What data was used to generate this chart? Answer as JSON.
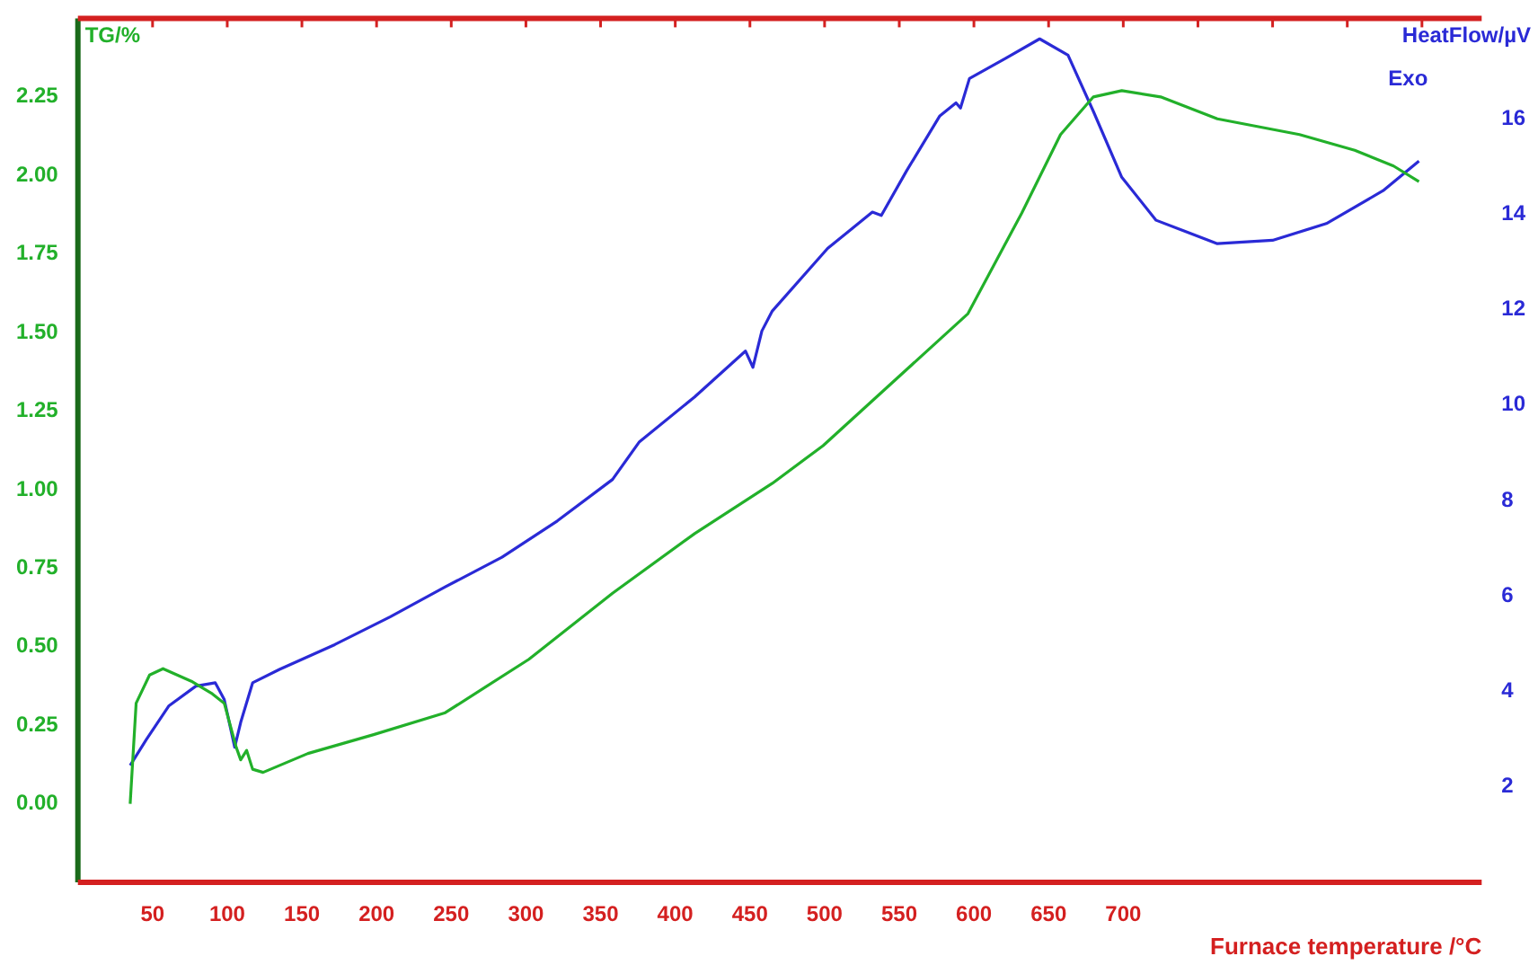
{
  "chart_data": {
    "type": "line",
    "xlabel": "Furnace temperature /°C",
    "ylabel": "TG/%",
    "y2label": "HeatFlow/µV",
    "annotations": [
      "Exo"
    ],
    "xlim": [
      0,
      940
    ],
    "xticks": [
      50,
      100,
      150,
      200,
      250,
      300,
      350,
      400,
      450,
      500,
      550,
      600,
      650,
      700,
      {
        "value": 750,
        "label": null
      },
      {
        "value": 800,
        "label": null
      },
      {
        "value": 850,
        "label": null
      },
      {
        "value": 900,
        "label": null
      }
    ],
    "ylim": [
      -0.25,
      2.5
    ],
    "yticks": [
      {
        "value": 0,
        "label": "0.00"
      },
      0.25,
      {
        "value": 0.5,
        "label": "0.50"
      },
      0.75,
      {
        "value": 1,
        "label": "1.00"
      },
      1.25,
      {
        "value": 1.5,
        "label": "1.50"
      },
      1.75,
      {
        "value": 2,
        "label": "2.00"
      },
      2.25
    ],
    "y2lim": [
      0,
      18.1
    ],
    "y2ticks": [
      2,
      4,
      6,
      8,
      10,
      12,
      14,
      16
    ],
    "grid": false,
    "marker": "none",
    "line_style": "solid",
    "series": [
      {
        "color": "#22b02a",
        "x": [
          35,
          39,
          48,
          57,
          76,
          90,
          98,
          106,
          109,
          113,
          117,
          124,
          154,
          198,
          246,
          302,
          358,
          413,
          465,
          499,
          596,
          632,
          658,
          680,
          699,
          725,
          763,
          818,
          855,
          881,
          898
        ],
        "values": [
          0.0,
          0.32,
          0.41,
          0.43,
          0.39,
          0.35,
          0.32,
          0.18,
          0.14,
          0.17,
          0.11,
          0.1,
          0.16,
          0.22,
          0.29,
          0.46,
          0.67,
          0.86,
          1.02,
          1.14,
          1.56,
          1.88,
          2.13,
          2.25,
          2.27,
          2.25,
          2.18,
          2.13,
          2.08,
          2.03,
          1.98
        ]
      },
      {
        "color": "#2a2ad6",
        "axis": "y2",
        "x": [
          35,
          46,
          61,
          79,
          92,
          98,
          105,
          109,
          117,
          135,
          172,
          209,
          246,
          284,
          321,
          358,
          376,
          413,
          447,
          452,
          458,
          465,
          502,
          532,
          538,
          555,
          577,
          588,
          591,
          597,
          621,
          644,
          663,
          680,
          699,
          722,
          763,
          800,
          836,
          874,
          898
        ],
        "values": [
          2.45,
          3.0,
          3.7,
          4.11,
          4.18,
          3.83,
          2.83,
          3.35,
          4.18,
          4.46,
          4.98,
          5.56,
          6.19,
          6.81,
          7.57,
          8.44,
          9.23,
          10.17,
          11.13,
          10.79,
          11.55,
          11.97,
          13.28,
          14.04,
          13.97,
          14.91,
          16.05,
          16.33,
          16.22,
          16.84,
          17.26,
          17.67,
          17.33,
          16.15,
          14.77,
          13.87,
          13.38,
          13.45,
          13.8,
          14.49,
          15.11
        ]
      }
    ]
  }
}
